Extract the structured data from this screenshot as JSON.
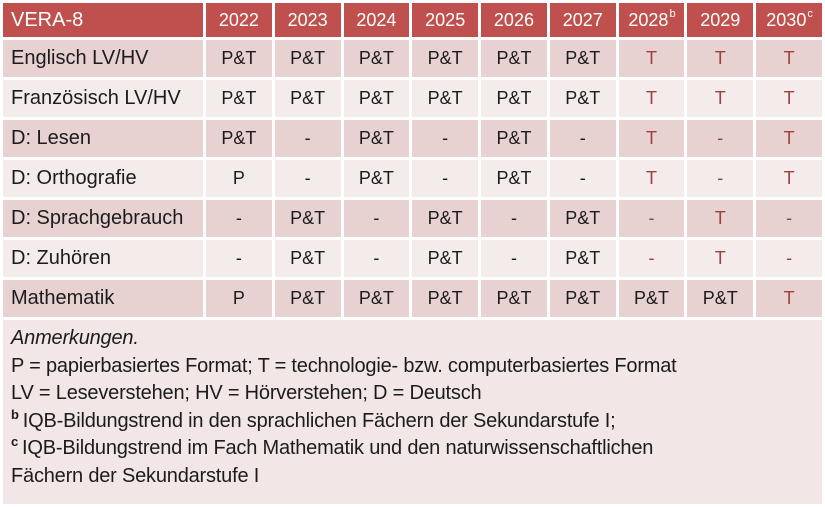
{
  "table": {
    "title": "VERA-8",
    "columns": [
      {
        "label": "2022",
        "sup": ""
      },
      {
        "label": "2023",
        "sup": ""
      },
      {
        "label": "2024",
        "sup": ""
      },
      {
        "label": "2025",
        "sup": ""
      },
      {
        "label": "2026",
        "sup": ""
      },
      {
        "label": "2027",
        "sup": ""
      },
      {
        "label": "2028",
        "sup": "b"
      },
      {
        "label": "2029",
        "sup": ""
      },
      {
        "label": "2030",
        "sup": "c"
      }
    ],
    "rows": [
      {
        "label": "Englisch LV/HV",
        "values": [
          "P&T",
          "P&T",
          "P&T",
          "P&T",
          "P&T",
          "P&T",
          "T",
          "T",
          "T"
        ]
      },
      {
        "label": "Französisch LV/HV",
        "values": [
          "P&T",
          "P&T",
          "P&T",
          "P&T",
          "P&T",
          "P&T",
          "T",
          "T",
          "T"
        ]
      },
      {
        "label": "D: Lesen",
        "values": [
          "P&T",
          "-",
          "P&T",
          "-",
          "P&T",
          "-",
          "T",
          "-",
          "T"
        ]
      },
      {
        "label": "D: Orthografie",
        "values": [
          "P",
          "-",
          "P&T",
          "-",
          "P&T",
          "-",
          "T",
          "-",
          "T"
        ]
      },
      {
        "label": "D: Sprachgebrauch",
        "values": [
          "-",
          "P&T",
          "-",
          "P&T",
          "-",
          "P&T",
          "-",
          "T",
          "-"
        ]
      },
      {
        "label": "D: Zuhören",
        "values": [
          "-",
          "P&T",
          "-",
          "P&T",
          "-",
          "P&T",
          "-",
          "T",
          "-"
        ]
      },
      {
        "label": "Mathematik",
        "values": [
          "P",
          "P&T",
          "P&T",
          "P&T",
          "P&T",
          "P&T",
          "P&T",
          "P&T",
          "T"
        ]
      }
    ]
  },
  "notes": {
    "lines": [
      {
        "sup": "",
        "italic": true,
        "text": "Anmerkungen."
      },
      {
        "sup": "",
        "italic": false,
        "text": "P = papierbasiertes Format; T = technologie- bzw. computerbasiertes Format"
      },
      {
        "sup": "",
        "italic": false,
        "text": "LV = Leseverstehen; HV = Hörverstehen; D = Deutsch"
      },
      {
        "sup": "b",
        "italic": false,
        "text": "IQB-Bildungstrend in den sprachlichen Fächern der Sekundarstufe I;"
      },
      {
        "sup": "c",
        "italic": false,
        "text": "IQB-Bildungstrend im Fach Mathematik und den naturwissenschaftlichen"
      },
      {
        "sup": "",
        "italic": false,
        "text": "Fächern der Sekundarstufe I"
      }
    ]
  },
  "colors": {
    "header_bg": "#c0504d",
    "header_text": "#ffffff",
    "band_dark": "#e7d1d1",
    "band_light": "#f4ebeb",
    "notes_bg": "#f2e6e6",
    "accent_text": "#9e3f3b",
    "body_text": "#1c1c1c",
    "grid": "#ffffff"
  }
}
